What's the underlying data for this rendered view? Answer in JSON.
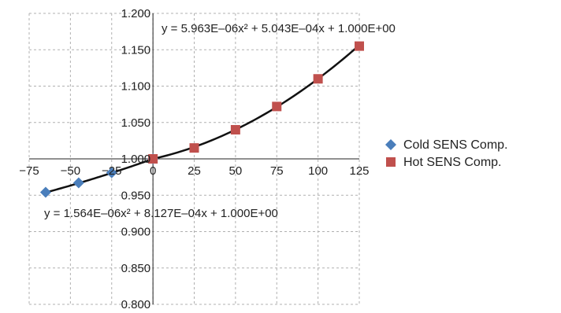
{
  "chart_data": {
    "type": "scatter",
    "title": "",
    "xlabel": "",
    "ylabel": "",
    "xlim": [
      -75,
      125
    ],
    "ylim": [
      0.8,
      1.2
    ],
    "x_ticks": [
      "-75",
      "-50",
      "-25",
      "0",
      "25",
      "50",
      "75",
      "100",
      "125"
    ],
    "y_ticks": [
      "0.800",
      "0.850",
      "0.900",
      "0.950",
      "1.000",
      "1.050",
      "1.100",
      "1.150",
      "1.200"
    ],
    "grid": true,
    "legend_position": "right",
    "series": [
      {
        "name": "Cold SENS Comp.",
        "marker": "diamond",
        "color": "#4a7ebb",
        "x": [
          -65,
          -45,
          -25,
          0
        ],
        "y": [
          0.954,
          0.967,
          0.981,
          1.0
        ],
        "trendline": {
          "equation": "y = 1.564E–06x² + 8.127E–04x + 1.000E+00",
          "a": 1.564e-06,
          "b": 0.0008127,
          "c": 1.0,
          "domain": [
            -65,
            0
          ]
        }
      },
      {
        "name": "Hot SENS Comp.",
        "marker": "square",
        "color": "#c0504d",
        "x": [
          0,
          25,
          50,
          75,
          100,
          125
        ],
        "y": [
          1.0,
          1.015,
          1.04,
          1.072,
          1.11,
          1.155
        ],
        "trendline": {
          "equation": "y = 5.963E–06x² + 5.043E–04x + 1.000E+00",
          "a": 5.963e-06,
          "b": 0.0005043,
          "c": 1.0,
          "domain": [
            0,
            125
          ]
        }
      }
    ],
    "trendline_color": "#111111",
    "grid_color": "#b0b0b0"
  }
}
